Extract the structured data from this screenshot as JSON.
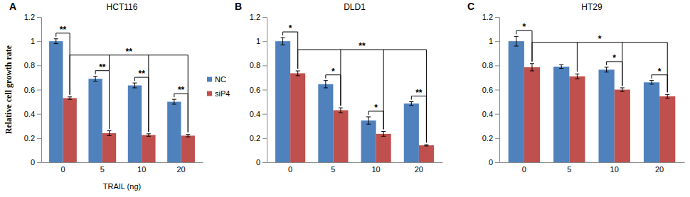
{
  "chart_data": [
    {
      "type": "bar",
      "panel": "A",
      "title": "HCT116",
      "x_label": "TRAIL (ng)",
      "y_label": "Relative cell growth rate",
      "categories": [
        0,
        5,
        10,
        20
      ],
      "series": [
        {
          "name": "NC",
          "color": "#4f81bd",
          "values": [
            1.0,
            0.69,
            0.635,
            0.5
          ],
          "errors": [
            0.02,
            0.02,
            0.02,
            0.02
          ]
        },
        {
          "name": "siP4",
          "color": "#c0504d",
          "values": [
            0.53,
            0.24,
            0.225,
            0.22
          ],
          "errors": [
            0.01,
            0.02,
            0.01,
            0.01
          ]
        }
      ],
      "ylim": [
        0,
        1.2
      ],
      "yticks": [
        0,
        0.2,
        0.4,
        0.6,
        0.8,
        1,
        1.2
      ],
      "legend": "right",
      "annotations": [
        {
          "text": "**",
          "bars": [
            [
              0,
              0
            ],
            [
              1,
              0
            ]
          ]
        },
        {
          "text": "**",
          "bars": [
            [
              0,
              1
            ],
            [
              1,
              1
            ]
          ]
        },
        {
          "text": "**",
          "bars": [
            [
              0,
              2
            ],
            [
              1,
              2
            ]
          ]
        },
        {
          "text": "**",
          "bars": [
            [
              0,
              3
            ],
            [
              1,
              3
            ]
          ]
        },
        {
          "text": "**",
          "bars": [
            [
              1,
              0
            ],
            [
              1,
              1
            ],
            [
              1,
              2
            ],
            [
              1,
              3
            ]
          ]
        }
      ]
    },
    {
      "type": "bar",
      "panel": "B",
      "title": "DLD1",
      "categories": [
        0,
        5,
        10,
        20
      ],
      "series": [
        {
          "name": "NC",
          "color": "#4f81bd",
          "values": [
            1.0,
            0.645,
            0.345,
            0.485
          ],
          "errors": [
            0.03,
            0.03,
            0.03,
            0.015
          ]
        },
        {
          "name": "siP4",
          "color": "#c0504d",
          "values": [
            0.735,
            0.43,
            0.235,
            0.14
          ],
          "errors": [
            0.02,
            0.02,
            0.02,
            0.005
          ]
        }
      ],
      "ylim": [
        0,
        1.2
      ],
      "yticks": [
        0,
        0.2,
        0.4,
        0.6,
        0.8,
        1,
        1.2
      ],
      "annotations": [
        {
          "text": "*",
          "bars": [
            [
              0,
              0
            ],
            [
              1,
              0
            ]
          ]
        },
        {
          "text": "*",
          "bars": [
            [
              0,
              1
            ],
            [
              1,
              1
            ]
          ]
        },
        {
          "text": "*",
          "bars": [
            [
              0,
              2
            ],
            [
              1,
              2
            ]
          ]
        },
        {
          "text": "**",
          "bars": [
            [
              0,
              3
            ],
            [
              1,
              3
            ]
          ]
        },
        {
          "text": "**",
          "bars": [
            [
              1,
              0
            ],
            [
              1,
              1
            ],
            [
              1,
              2
            ],
            [
              1,
              3
            ]
          ]
        }
      ]
    },
    {
      "type": "bar",
      "panel": "C",
      "title": "HT29",
      "categories": [
        0,
        5,
        10,
        20
      ],
      "series": [
        {
          "name": "NC",
          "color": "#4f81bd",
          "values": [
            1.0,
            0.79,
            0.765,
            0.66
          ],
          "errors": [
            0.04,
            0.015,
            0.02,
            0.015
          ]
        },
        {
          "name": "siP4",
          "color": "#c0504d",
          "values": [
            0.785,
            0.71,
            0.6,
            0.545
          ],
          "errors": [
            0.03,
            0.02,
            0.015,
            0.015
          ]
        }
      ],
      "ylim": [
        0,
        1.2
      ],
      "yticks": [
        0,
        0.2,
        0.4,
        0.6,
        0.8,
        1,
        1.2
      ],
      "annotations": [
        {
          "text": "*",
          "bars": [
            [
              0,
              0
            ],
            [
              1,
              0
            ]
          ]
        },
        {
          "text": "*",
          "bars": [
            [
              0,
              2
            ],
            [
              1,
              2
            ]
          ]
        },
        {
          "text": "*",
          "bars": [
            [
              0,
              3
            ],
            [
              1,
              3
            ]
          ]
        },
        {
          "text": "*",
          "bars": [
            [
              1,
              0
            ],
            [
              1,
              1
            ],
            [
              1,
              2
            ],
            [
              1,
              3
            ]
          ]
        }
      ]
    }
  ]
}
